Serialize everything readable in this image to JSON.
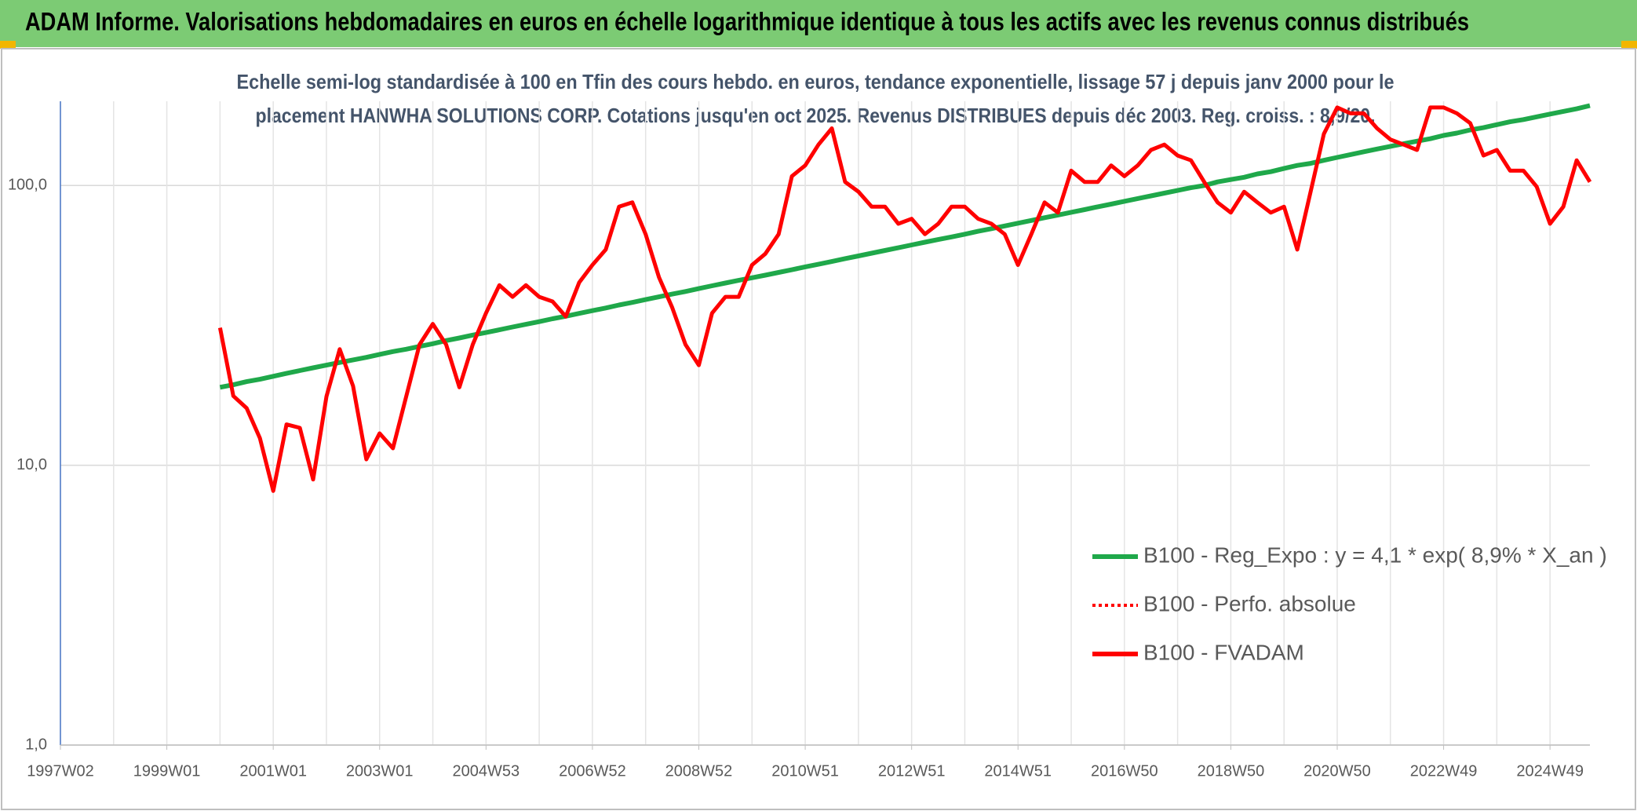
{
  "chart_data": {
    "type": "line",
    "title": "ADAM Informe. Valorisations hebdomadaires en euros en échelle logarithmique identique à tous les actifs avec les revenus connus distribués",
    "subtitle": [
      "Echelle semi-log standardisée à 100 en Tfin des cours hebdo. en euros, tendance exponentielle, lissage 57 j depuis janv 2000 pour le",
      "placement HANWHA SOLUTIONS CORP. Cotations jusqu'en oct 2025. Revenus DISTRIBUES depuis déc 2003. Reg. croiss. : 8,9/20."
    ],
    "categories": [
      "1997W02",
      null,
      null,
      null,
      null,
      null,
      null,
      null,
      "1999W01",
      null,
      null,
      null,
      null,
      null,
      null,
      null,
      "2001W01",
      null,
      null,
      null,
      null,
      null,
      null,
      null,
      "2003W01",
      null,
      null,
      null,
      null,
      null,
      null,
      null,
      "2004W53",
      null,
      null,
      null,
      null,
      null,
      null,
      null,
      "2006W52",
      null,
      null,
      null,
      null,
      null,
      null,
      null,
      "2008W52",
      null,
      null,
      null,
      null,
      null,
      null,
      null,
      "2010W51",
      null,
      null,
      null,
      null,
      null,
      null,
      null,
      "2012W51",
      null,
      null,
      null,
      null,
      null,
      null,
      null,
      "2014W51",
      null,
      null,
      null,
      null,
      null,
      null,
      null,
      "2016W50",
      null,
      null,
      null,
      null,
      null,
      null,
      null,
      "2018W50",
      null,
      null,
      null,
      null,
      null,
      null,
      null,
      "2020W50",
      null,
      null,
      null,
      null,
      null,
      null,
      null,
      "2022W49",
      null,
      null,
      null,
      null,
      null,
      null,
      null,
      "2024W49",
      null,
      null,
      null
    ],
    "ylim": [
      1,
      200
    ],
    "yticks": [
      {
        "value": 1,
        "label": "1,0"
      },
      {
        "value": 10,
        "label": "10,0"
      },
      {
        "value": 100,
        "label": "100,0"
      }
    ],
    "log_scale": true,
    "grid": true,
    "legend": "right",
    "series": [
      {
        "name": "B100 - Reg_Expo : y = 4,1 * exp( 8,9% *  X_an )",
        "color": "#1fa84a",
        "style": "solid",
        "values": [
          null,
          null,
          null,
          null,
          null,
          null,
          null,
          null,
          null,
          null,
          null,
          null,
          19.0,
          19.4,
          19.9,
          20.3,
          20.8,
          21.3,
          21.8,
          22.3,
          22.8,
          23.3,
          23.8,
          24.3,
          24.9,
          25.5,
          26.0,
          26.6,
          27.2,
          27.9,
          28.5,
          29.2,
          29.8,
          30.5,
          31.2,
          31.9,
          32.6,
          33.4,
          34.1,
          34.9,
          35.7,
          36.5,
          37.4,
          38.2,
          39.1,
          40.0,
          40.9,
          41.8,
          42.8,
          43.8,
          44.8,
          45.8,
          46.8,
          47.8,
          48.9,
          50.0,
          51.2,
          52.3,
          53.5,
          54.8,
          56.0,
          57.3,
          58.6,
          59.9,
          61.3,
          62.7,
          64.1,
          65.5,
          67.0,
          68.6,
          70.1,
          71.7,
          73.3,
          75.0,
          76.7,
          78.4,
          80.2,
          82.0,
          83.9,
          85.8,
          87.8,
          89.8,
          91.8,
          93.9,
          96.0,
          98.2,
          100,
          103,
          105,
          107,
          110,
          112,
          115,
          118,
          120,
          123,
          126,
          129,
          132,
          135,
          138,
          141,
          144,
          147,
          151,
          154,
          158,
          161,
          165,
          169,
          172,
          176,
          180,
          184,
          188,
          193
        ]
      },
      {
        "name": "B100 - Perfo. absolue",
        "color": "#ff0000",
        "style": "dotted",
        "values": [
          null,
          null,
          null,
          null,
          null,
          null,
          null,
          null,
          null,
          null,
          null,
          null,
          null,
          null,
          null,
          null,
          null,
          null,
          null,
          null,
          null,
          null,
          null,
          null,
          null,
          null,
          null,
          null,
          null,
          null,
          null,
          null,
          null,
          null,
          null,
          null,
          null,
          null,
          null,
          null,
          null,
          null,
          null,
          null,
          null,
          null,
          null,
          null,
          null,
          null,
          null,
          null,
          null,
          null,
          null,
          null,
          null,
          null,
          null,
          null,
          null,
          null,
          null,
          null,
          null,
          null,
          null,
          null,
          null,
          null,
          null,
          null,
          null,
          null,
          null,
          null,
          null,
          null,
          null,
          null,
          null,
          null,
          null,
          null,
          null,
          null,
          null,
          null,
          null,
          null,
          null,
          null,
          null,
          null,
          null,
          null,
          null,
          null,
          null,
          null,
          null,
          null,
          null,
          null,
          null,
          null,
          null,
          null,
          null,
          null,
          null,
          null,
          null,
          null,
          null,
          null
        ]
      },
      {
        "name": "B100 - FVADAM",
        "color": "#ff0000",
        "style": "solid",
        "values": [
          null,
          null,
          null,
          null,
          null,
          null,
          null,
          null,
          null,
          null,
          null,
          null,
          31,
          17.7,
          16,
          12.5,
          8.1,
          14,
          13.6,
          8.9,
          17.6,
          26,
          19.2,
          10.5,
          13,
          11.5,
          17.6,
          27,
          32,
          27,
          19,
          27,
          35,
          44,
          40,
          44,
          40,
          38.5,
          34,
          45,
          52,
          59,
          84,
          87,
          67,
          47,
          36.6,
          27,
          22.8,
          35,
          40,
          40,
          52,
          57,
          67,
          108,
          118,
          140,
          160,
          103,
          95,
          84,
          84,
          73,
          76,
          67,
          73,
          84,
          84,
          76,
          73,
          67,
          52,
          67,
          87,
          80,
          113,
          103,
          103,
          118,
          108,
          118,
          134,
          140,
          128,
          123,
          103,
          87,
          80,
          95,
          87,
          80,
          84,
          59,
          95,
          153,
          190,
          181,
          181,
          160,
          146,
          140,
          134,
          190,
          190,
          181,
          167,
          128,
          134,
          113,
          113,
          99,
          73,
          84,
          123,
          103
        ]
      }
    ]
  }
}
